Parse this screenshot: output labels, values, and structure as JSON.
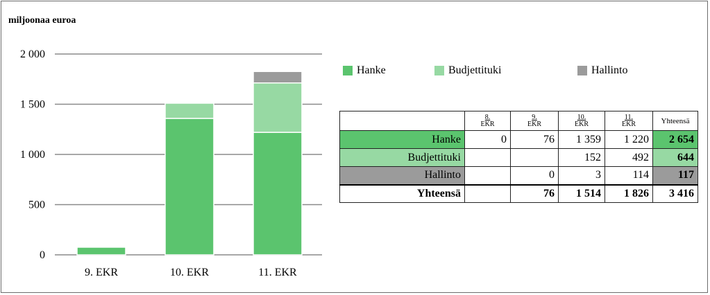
{
  "chart_data": {
    "type": "bar",
    "stacked": true,
    "unit_label": "miljoonaa euroa",
    "categories": [
      "9. EKR",
      "10. EKR",
      "11. EKR"
    ],
    "series": [
      {
        "name": "Hanke",
        "color": "#5bc46e",
        "values": [
          76,
          1359,
          1220
        ]
      },
      {
        "name": "Budjettituki",
        "color": "#97d9a3",
        "values": [
          0,
          152,
          492
        ]
      },
      {
        "name": "Hallinto",
        "color": "#9b9b9b",
        "values": [
          0,
          3,
          114
        ]
      }
    ],
    "ylim": [
      0,
      2000
    ],
    "yticks": [
      0,
      500,
      1000,
      1500,
      2000
    ],
    "ytick_labels": [
      "0",
      "500",
      "1 000",
      "1 500",
      "2 000"
    ],
    "grid": true,
    "legend_position": "top-right",
    "table": {
      "columns": [
        {
          "top": "8.",
          "bottom": "EKR"
        },
        {
          "top": "9.",
          "bottom": "EKR"
        },
        {
          "top": "10.",
          "bottom": "EKR"
        },
        {
          "top": "11.",
          "bottom": "EKR"
        },
        {
          "top": "Yhteensä",
          "bottom": ""
        }
      ],
      "rows": [
        {
          "label": "Hanke",
          "color": "#5bc46e",
          "values": [
            "0",
            "76",
            "1 359",
            "1 220"
          ],
          "total": "2 654"
        },
        {
          "label": "Budjettituki",
          "color": "#97d9a3",
          "values": [
            "",
            "",
            "152",
            "492"
          ],
          "total": "644"
        },
        {
          "label": "Hallinto",
          "color": "#9b9b9b",
          "values": [
            "",
            "0",
            "3",
            "114"
          ],
          "total": "117"
        }
      ],
      "total_row": {
        "label": "Yhteensä",
        "values": [
          "",
          "76",
          "1 514",
          "1 826"
        ],
        "total": "3 416"
      }
    }
  }
}
